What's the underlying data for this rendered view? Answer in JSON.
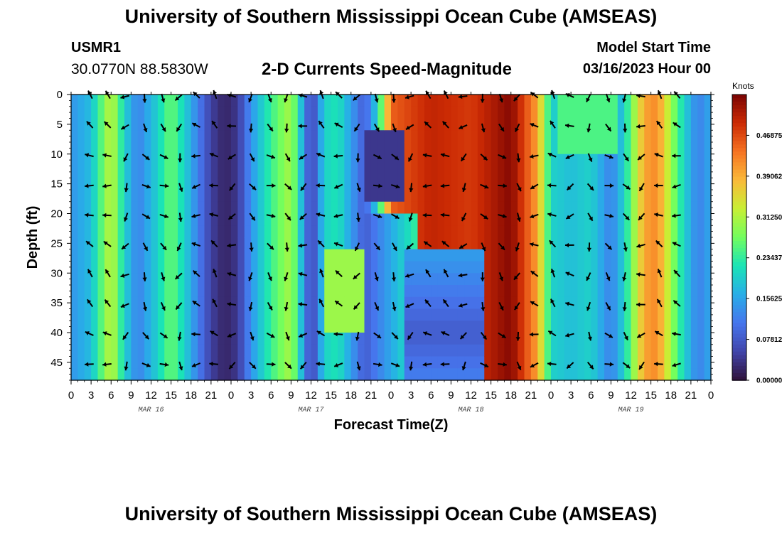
{
  "chart_data": {
    "type": "heatmap",
    "title": "University of Southern Mississippi Ocean Cube (AMSEAS)",
    "subtitle": "2-D Currents Speed-Magnitude",
    "station": "USMR1",
    "location": "30.0770N  88.5830W",
    "model_start_label": "Model Start Time",
    "model_start_value": "03/16/2023 Hour 00",
    "bottom_title": "University of Southern Mississippi Ocean Cube (AMSEAS)",
    "xlabel": "Forecast Time(Z)",
    "ylabel": "Depth (ft)",
    "x_range_hours": [
      0,
      96
    ],
    "y_range_ft": [
      0,
      48
    ],
    "x_tick_labels": [
      "0",
      "3",
      "6",
      "9",
      "12",
      "15",
      "18",
      "21",
      "0",
      "3",
      "6",
      "9",
      "12",
      "15",
      "18",
      "21",
      "0",
      "3",
      "6",
      "9",
      "12",
      "15",
      "18",
      "21",
      "0",
      "3",
      "6",
      "9",
      "12",
      "15",
      "18",
      "21",
      "0"
    ],
    "date_labels": [
      {
        "label": "MAR 16",
        "hour": 12
      },
      {
        "label": "MAR 17",
        "hour": 36
      },
      {
        "label": "MAR 18",
        "hour": 60
      },
      {
        "label": "MAR 19",
        "hour": 84
      }
    ],
    "y_ticks": [
      "0",
      "5",
      "10",
      "15",
      "20",
      "25",
      "30",
      "35",
      "40",
      "45"
    ],
    "colorbar_label": "Knots",
    "colorbar_ticks": [
      "0.46875",
      "0.39062",
      "0.31250",
      "0.23437",
      "0.15625",
      "0.07812",
      "0.00000"
    ],
    "colorbar_range": [
      0,
      0.546875
    ],
    "speed_profile_knots": [
      {
        "hour": 0,
        "speed": 0.14
      },
      {
        "hour": 3,
        "speed": 0.18
      },
      {
        "hour": 6,
        "speed": 0.33
      },
      {
        "hour": 8,
        "speed": 0.2
      },
      {
        "hour": 10,
        "speed": 0.12
      },
      {
        "hour": 13,
        "speed": 0.2
      },
      {
        "hour": 15,
        "speed": 0.27
      },
      {
        "hour": 17,
        "speed": 0.2
      },
      {
        "hour": 19,
        "speed": 0.12
      },
      {
        "hour": 21,
        "speed": 0.05
      },
      {
        "hour": 23,
        "speed": 0.02
      },
      {
        "hour": 25,
        "speed": 0.04
      },
      {
        "hour": 27,
        "speed": 0.14
      },
      {
        "hour": 30,
        "speed": 0.24
      },
      {
        "hour": 33,
        "speed": 0.31
      },
      {
        "hour": 35,
        "speed": 0.14
      },
      {
        "hour": 36,
        "speed": 0.04
      },
      {
        "hour": 38,
        "speed": 0.2
      },
      {
        "hour": 40,
        "speed": 0.22
      },
      {
        "hour": 42,
        "speed": 0.15
      },
      {
        "hour": 44,
        "speed": 0.08
      },
      {
        "hour": 46,
        "speed": 0.2
      },
      {
        "hour": 48,
        "speed": 0.45
      },
      {
        "hour": 54,
        "speed": 0.5
      },
      {
        "hour": 60,
        "speed": 0.48
      },
      {
        "hour": 66,
        "speed": 0.54
      },
      {
        "hour": 70,
        "speed": 0.4
      },
      {
        "hour": 72,
        "speed": 0.2
      },
      {
        "hour": 75,
        "speed": 0.18
      },
      {
        "hour": 78,
        "speed": 0.2
      },
      {
        "hour": 81,
        "speed": 0.12
      },
      {
        "hour": 83,
        "speed": 0.2
      },
      {
        "hour": 86,
        "speed": 0.4
      },
      {
        "hour": 88,
        "speed": 0.42
      },
      {
        "hour": 90,
        "speed": 0.3
      },
      {
        "hour": 92,
        "speed": 0.2
      },
      {
        "hour": 94,
        "speed": 0.12
      },
      {
        "hour": 96,
        "speed": 0.16
      }
    ],
    "arrow_grid": {
      "hours_start": 3,
      "hours_step": 2.67,
      "count": 34,
      "depths_ft": [
        0,
        5,
        10,
        15,
        20,
        25,
        30,
        35,
        40,
        45
      ]
    }
  }
}
